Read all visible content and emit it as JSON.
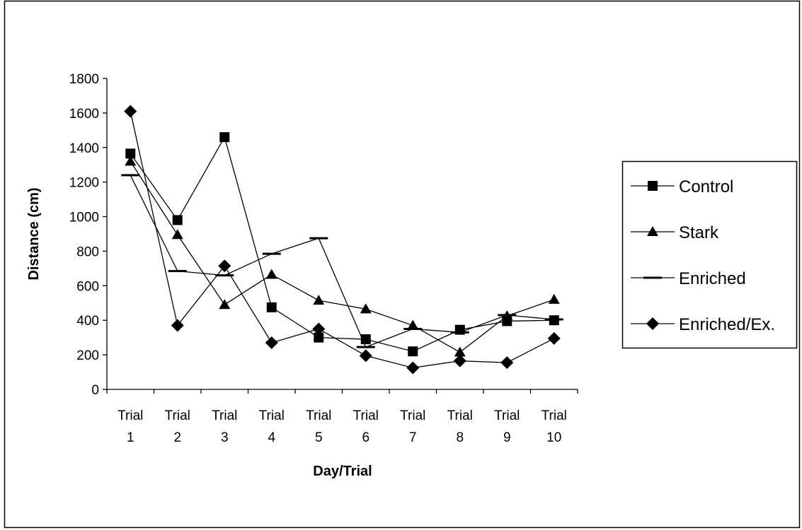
{
  "chart_data": {
    "type": "line",
    "xlabel": "Day/Trial",
    "ylabel": "Distance (cm)",
    "ylim": [
      0,
      1800
    ],
    "yticks": [
      0,
      200,
      400,
      600,
      800,
      1000,
      1200,
      1400,
      1600,
      1800
    ],
    "categories": [
      [
        "Trial",
        "1"
      ],
      [
        "Trial",
        "2"
      ],
      [
        "Trial",
        "3"
      ],
      [
        "Trial",
        "4"
      ],
      [
        "Trial",
        "5"
      ],
      [
        "Trial",
        "6"
      ],
      [
        "Trial",
        "7"
      ],
      [
        "Trial",
        "8"
      ],
      [
        "Trial",
        "9"
      ],
      [
        "Trial",
        "10"
      ]
    ],
    "grid": false,
    "legend_position": "right",
    "series": [
      {
        "name": "Control",
        "marker": "square",
        "values": [
          1365,
          980,
          1460,
          475,
          300,
          290,
          220,
          345,
          395,
          400
        ]
      },
      {
        "name": "Stark",
        "marker": "triangle",
        "values": [
          1320,
          895,
          490,
          665,
          515,
          465,
          370,
          215,
          425,
          520
        ]
      },
      {
        "name": "Enriched",
        "marker": "dash",
        "values": [
          1240,
          685,
          660,
          785,
          875,
          245,
          350,
          330,
          430,
          405
        ]
      },
      {
        "name": "Enriched/Ex.",
        "marker": "diamond",
        "values": [
          1610,
          370,
          715,
          270,
          350,
          195,
          125,
          165,
          155,
          295
        ]
      }
    ],
    "line_color": "#000000"
  }
}
